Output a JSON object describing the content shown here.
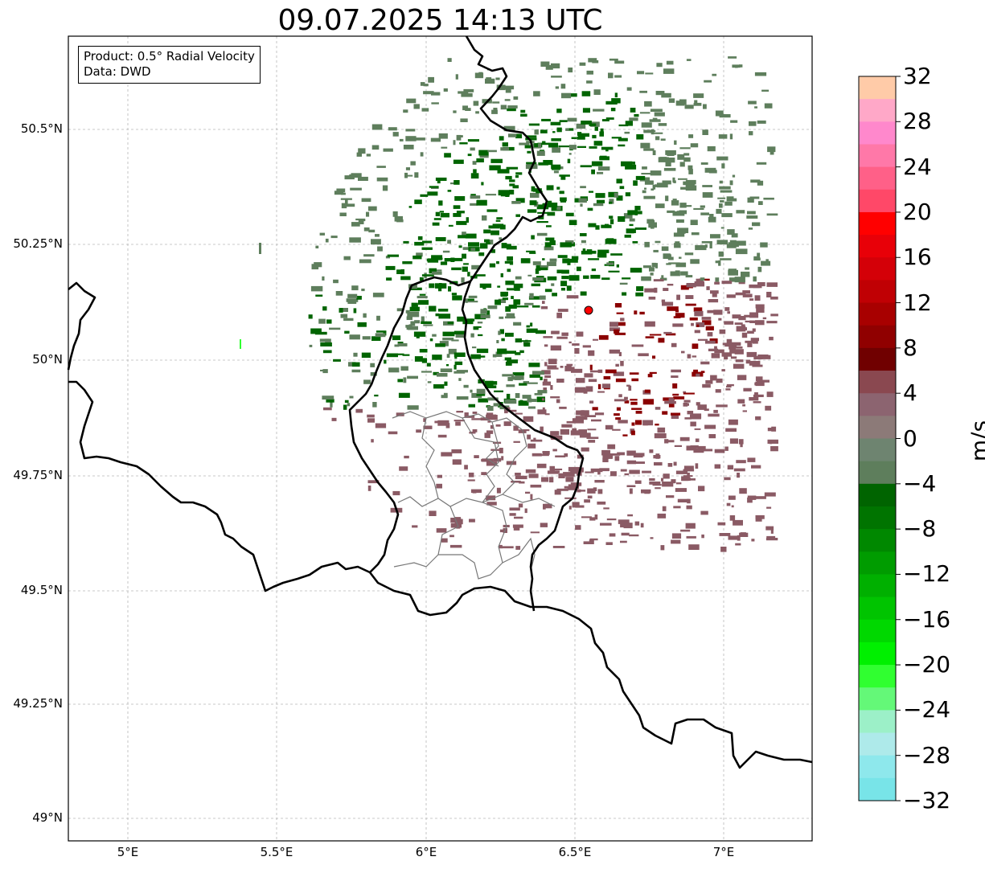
{
  "title": "09.07.2025 14:13 UTC",
  "info": {
    "product": "Product: 0.5° Radial Velocity",
    "data": "Data: DWD"
  },
  "axes": {
    "lat_labels": [
      "50.5°N",
      "50.25°N",
      "50°N",
      "49.75°N",
      "49.5°N",
      "49.25°N",
      "49°N"
    ],
    "lon_labels": [
      "5°E",
      "5.5°E",
      "6°E",
      "6.5°E",
      "7°E"
    ]
  },
  "colorbar": {
    "unit": "m/s",
    "tick_labels": [
      "32",
      "28",
      "24",
      "20",
      "16",
      "12",
      "8",
      "4",
      "0",
      "−4",
      "−8",
      "−12",
      "−16",
      "−20",
      "−24",
      "−28",
      "−32"
    ],
    "range": [
      -32,
      32
    ],
    "colors_top_to_bottom": [
      "#ffcba8",
      "#ffa8c8",
      "#ff88cc",
      "#ff78a8",
      "#ff6088",
      "#ff4868",
      "#ff0000",
      "#e80008",
      "#d40008",
      "#c00004",
      "#a80000",
      "#900000",
      "#700000",
      "#8a4850",
      "#8c6470",
      "#8c7a78",
      "#6e8470",
      "#5e7e5c",
      "#006400",
      "#007400",
      "#008800",
      "#009c00",
      "#00b000",
      "#00c400",
      "#00d800",
      "#00f000",
      "#30ff30",
      "#64f878",
      "#9cf0c8",
      "#aeeaea",
      "#8ee8ec",
      "#78e4e8"
    ]
  },
  "radar_site": {
    "lat": 50.11,
    "lon": 6.55,
    "color": "#ff0000"
  },
  "map_extent": {
    "lon_min": 4.8,
    "lon_max": 7.3,
    "lat_min": 48.95,
    "lat_max": 50.7
  },
  "velocity_colors": {
    "approaching_strong": "#006400",
    "approaching_weak": "#5e7e5c",
    "receding_weak": "#8a5a64",
    "receding_strong": "#8a0000"
  }
}
